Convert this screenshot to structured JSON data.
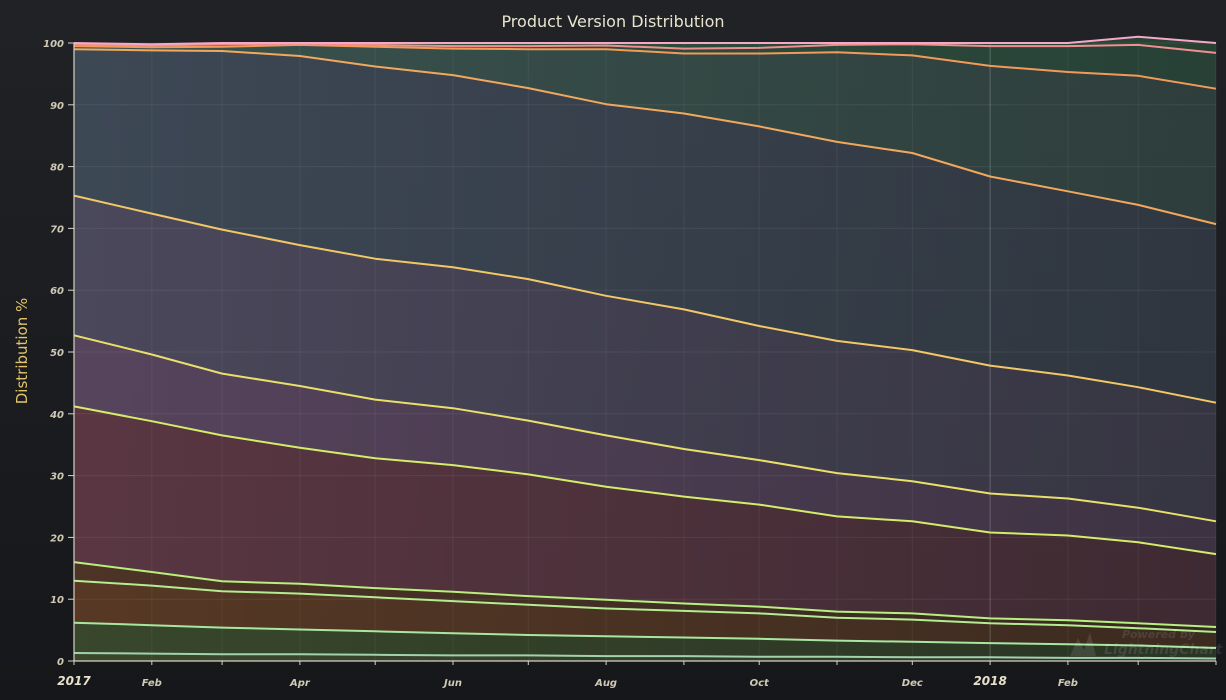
{
  "chart_data": {
    "type": "area",
    "stacked": true,
    "title": "Product Version Distribution",
    "ylabel": "Distribution %",
    "xlabel": "",
    "ylim": [
      0,
      100
    ],
    "yticks": [
      "0",
      "10",
      "20",
      "30",
      "40",
      "50",
      "60",
      "70",
      "80",
      "90",
      "100"
    ],
    "x": [
      "2017-01-01",
      "2017-02-01",
      "2017-03-01",
      "2017-04-01",
      "2017-05-01",
      "2017-06-01",
      "2017-07-01",
      "2017-08-01",
      "2017-09-01",
      "2017-10-01",
      "2017-11-01",
      "2017-12-01",
      "2018-01-01",
      "2018-02-01",
      "2018-03-01",
      "2018-04-01"
    ],
    "xticks": [
      {
        "date": "2017-01-01",
        "label": "2017",
        "major": true
      },
      {
        "date": "2017-02-01",
        "label": "Feb",
        "major": false
      },
      {
        "date": "2017-04-01",
        "label": "Apr",
        "major": false
      },
      {
        "date": "2017-06-01",
        "label": "Jun",
        "major": false
      },
      {
        "date": "2017-08-01",
        "label": "Aug",
        "major": false
      },
      {
        "date": "2017-10-01",
        "label": "Oct",
        "major": false
      },
      {
        "date": "2017-12-01",
        "label": "Dec",
        "major": false
      },
      {
        "date": "2018-01-01",
        "label": "2018",
        "major": true
      },
      {
        "date": "2018-02-01",
        "label": "Feb",
        "major": false
      }
    ],
    "grid": true,
    "legend": "none",
    "series": [
      {
        "line_color": "#9fd3ae",
        "fill_color": "#3d4a2e",
        "values": [
          1.3,
          1.2,
          1.1,
          1.1,
          1.0,
          0.9,
          0.9,
          0.8,
          0.8,
          0.7,
          0.7,
          0.6,
          0.6,
          0.5,
          0.5,
          0.4
        ]
      },
      {
        "line_color": "#a8e7a0",
        "fill_color": "#3a4a2c",
        "values": [
          4.9,
          4.6,
          4.3,
          4.0,
          3.8,
          3.6,
          3.3,
          3.2,
          3.0,
          2.9,
          2.6,
          2.5,
          2.3,
          2.2,
          2.0,
          1.7
        ]
      },
      {
        "line_color": "#b4ec92",
        "fill_color": "#5a3a25",
        "values": [
          6.8,
          6.4,
          5.9,
          5.8,
          5.5,
          5.2,
          4.9,
          4.5,
          4.3,
          4.1,
          3.7,
          3.6,
          3.2,
          3.1,
          2.8,
          2.6
        ]
      },
      {
        "line_color": "#b8ef7e",
        "fill_color": "#4f3526",
        "values": [
          3.0,
          2.2,
          1.6,
          1.6,
          1.5,
          1.5,
          1.4,
          1.4,
          1.2,
          1.1,
          1.0,
          1.0,
          0.8,
          0.8,
          0.8,
          0.8
        ]
      },
      {
        "line_color": "#d4ec6a",
        "fill_color": "#5d3844",
        "values": [
          25.2,
          24.4,
          23.6,
          22.0,
          21.0,
          20.5,
          19.7,
          18.3,
          17.3,
          16.5,
          15.4,
          14.9,
          13.9,
          13.7,
          13.1,
          11.8
        ]
      },
      {
        "line_color": "#e8e06a",
        "fill_color": "#5a4660",
        "values": [
          11.5,
          10.8,
          10.0,
          10.0,
          9.5,
          9.2,
          8.7,
          8.3,
          7.7,
          7.2,
          7.0,
          6.5,
          6.3,
          6.0,
          5.6,
          5.3
        ]
      },
      {
        "line_color": "#f1c865",
        "fill_color": "#4d4a5e",
        "values": [
          22.6,
          22.8,
          23.3,
          22.8,
          22.8,
          22.8,
          22.9,
          22.6,
          22.6,
          21.7,
          21.4,
          21.2,
          20.7,
          19.9,
          19.5,
          19.2
        ]
      },
      {
        "line_color": "#f2a85c",
        "fill_color": "#3f4a58",
        "values": [
          23.7,
          26.4,
          28.9,
          30.6,
          31.1,
          31.1,
          30.9,
          31.0,
          31.7,
          32.3,
          32.2,
          31.9,
          30.6,
          29.8,
          29.5,
          28.9
        ]
      },
      {
        "line_color": "#f49a58",
        "fill_color": "#3b5650",
        "values": [
          0.5,
          0.5,
          0.7,
          1.8,
          3.2,
          4.3,
          6.3,
          8.9,
          9.7,
          11.8,
          14.5,
          15.8,
          17.9,
          19.3,
          20.9,
          21.9
        ]
      },
      {
        "line_color": "#f08f8f",
        "fill_color": "#2f5a44",
        "values": [
          0.3,
          0.3,
          0.4,
          0.2,
          0.3,
          0.4,
          0.5,
          0.6,
          0.8,
          0.9,
          1.2,
          1.8,
          3.2,
          4.2,
          5.0,
          5.8
        ]
      },
      {
        "line_color": "#f5a8c8",
        "fill_color": "#2d5a3e",
        "values": [
          0.2,
          0.2,
          0.2,
          0.1,
          0.3,
          0.5,
          0.5,
          0.4,
          0.9,
          0.8,
          0.3,
          0.2,
          0.5,
          0.5,
          1.3,
          1.6
        ]
      }
    ]
  },
  "watermark": {
    "line1": "Powered by",
    "line2": "LightningChart"
  }
}
